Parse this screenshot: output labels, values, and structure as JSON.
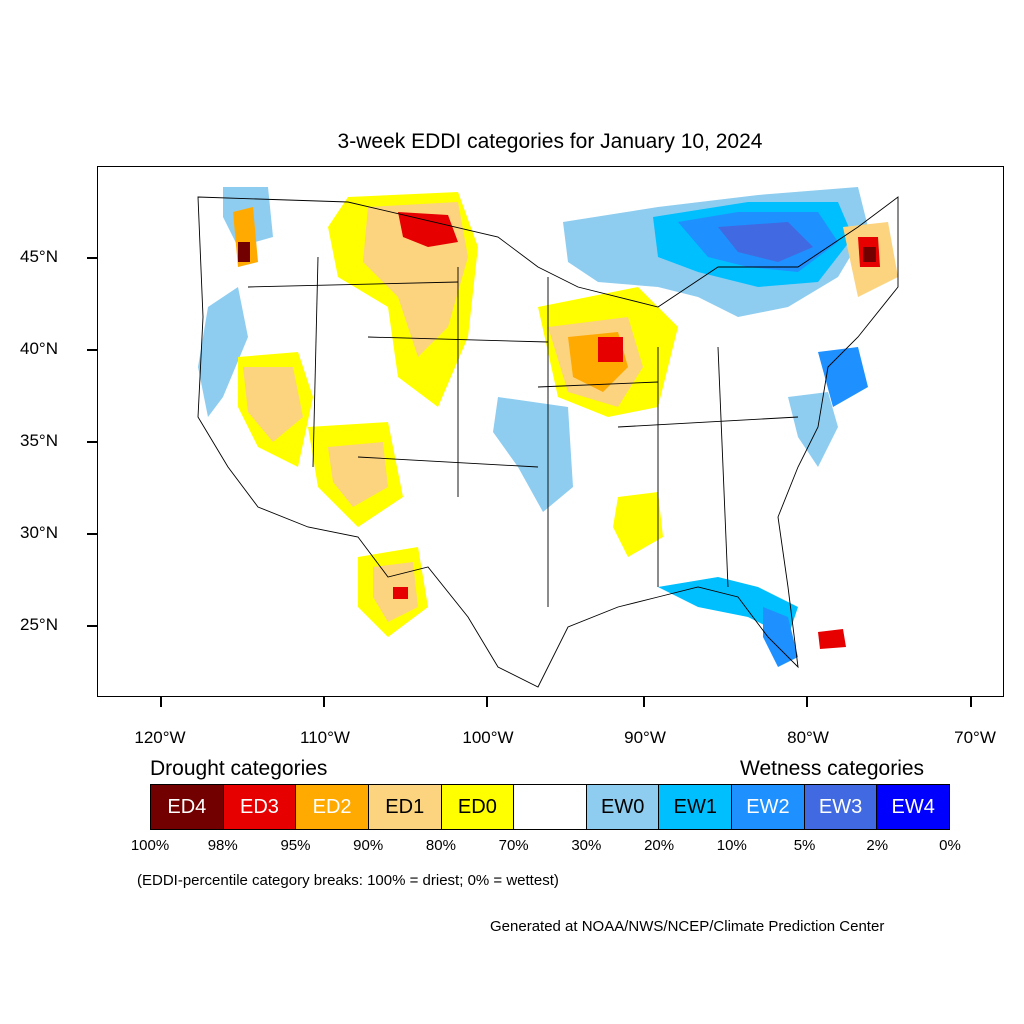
{
  "title": "3-week EDDI categories for January 10, 2024",
  "y_axis_labels": [
    "45°N",
    "40°N",
    "35°N",
    "30°N",
    "25°N"
  ],
  "x_axis_labels": [
    "120°W",
    "110°W",
    "100°W",
    "90°W",
    "80°W",
    "70°W"
  ],
  "drought_heading": "Drought categories",
  "wetness_heading": "Wetness categories",
  "legend": [
    {
      "label": "ED4",
      "color": "#730000",
      "text_color": "#ffffff"
    },
    {
      "label": "ED3",
      "color": "#e60000",
      "text_color": "#ffffff"
    },
    {
      "label": "ED2",
      "color": "#ffaa00",
      "text_color": "#ffffff"
    },
    {
      "label": "ED1",
      "color": "#fcd37f",
      "text_color": "#000000"
    },
    {
      "label": "ED0",
      "color": "#ffff00",
      "text_color": "#000000"
    },
    {
      "label": "",
      "color": "#ffffff",
      "text_color": "#000000"
    },
    {
      "label": "EW0",
      "color": "#8ecdf0",
      "text_color": "#000000"
    },
    {
      "label": "EW1",
      "color": "#00bfff",
      "text_color": "#000000"
    },
    {
      "label": "EW2",
      "color": "#1e90ff",
      "text_color": "#ffffff"
    },
    {
      "label": "EW3",
      "color": "#4169e1",
      "text_color": "#ffffff"
    },
    {
      "label": "EW4",
      "color": "#0000ff",
      "text_color": "#ffffff"
    }
  ],
  "percent_breaks": [
    "100%",
    "98%",
    "95%",
    "90%",
    "80%",
    "70%",
    "30%",
    "20%",
    "10%",
    "5%",
    "2%",
    "0%"
  ],
  "note": "(EDDI-percentile category breaks: 100% = driest; 0% = wettest)",
  "credit": "Generated at NOAA/NWS/NCEP/Climate Prediction Center"
}
